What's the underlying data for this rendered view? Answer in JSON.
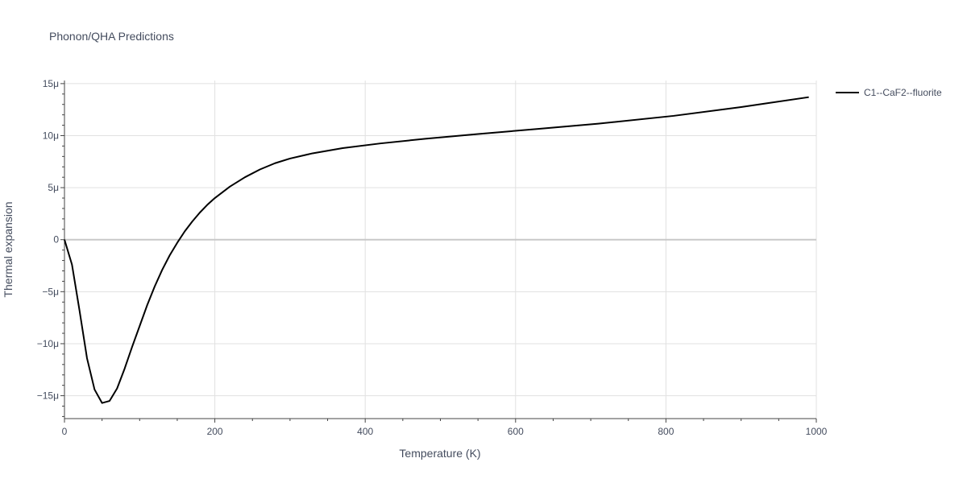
{
  "chart_data": {
    "type": "line",
    "title": "Phonon/QHA Predictions",
    "xlabel": "Temperature (K)",
    "ylabel": "Thermal expansion",
    "xlim": [
      0,
      1000
    ],
    "ylim": [
      -1.72e-05,
      1.53e-05
    ],
    "x_ticks": [
      0,
      200,
      400,
      600,
      800,
      1000
    ],
    "x_tick_labels": [
      "0",
      "200",
      "400",
      "600",
      "800",
      "1000"
    ],
    "y_ticks": [
      -1.5e-05,
      -1e-05,
      -5e-06,
      0,
      5e-06,
      1e-05,
      1.5e-05
    ],
    "y_tick_labels": [
      "−15μ",
      "−10μ",
      "−5μ",
      "0",
      "5μ",
      "10μ",
      "15μ"
    ],
    "grid": true,
    "legend_position": "right",
    "series": [
      {
        "name": "C1--CaF2--fluorite",
        "color": "#000000",
        "x": [
          0,
          10,
          20,
          30,
          40,
          50,
          60,
          70,
          80,
          90,
          100,
          110,
          120,
          130,
          140,
          150,
          160,
          170,
          180,
          190,
          200,
          220,
          240,
          260,
          280,
          300,
          330,
          370,
          420,
          480,
          550,
          630,
          710,
          810,
          900,
          990
        ],
        "y": [
          0,
          -2.4e-06,
          -6.8e-06,
          -1.14e-05,
          -1.44e-05,
          -1.57e-05,
          -1.55e-05,
          -1.43e-05,
          -1.24e-05,
          -1.03e-05,
          -8.3e-06,
          -6.3e-06,
          -4.5e-06,
          -2.9e-06,
          -1.5e-06,
          -3e-07,
          8e-07,
          1.75e-06,
          2.6e-06,
          3.35e-06,
          4e-06,
          5.1e-06,
          6e-06,
          6.75e-06,
          7.35e-06,
          7.8e-06,
          8.3e-06,
          8.8e-06,
          9.25e-06,
          9.7e-06,
          1.015e-05,
          1.065e-05,
          1.115e-05,
          1.19e-05,
          1.275e-05,
          1.37e-05
        ]
      }
    ]
  }
}
